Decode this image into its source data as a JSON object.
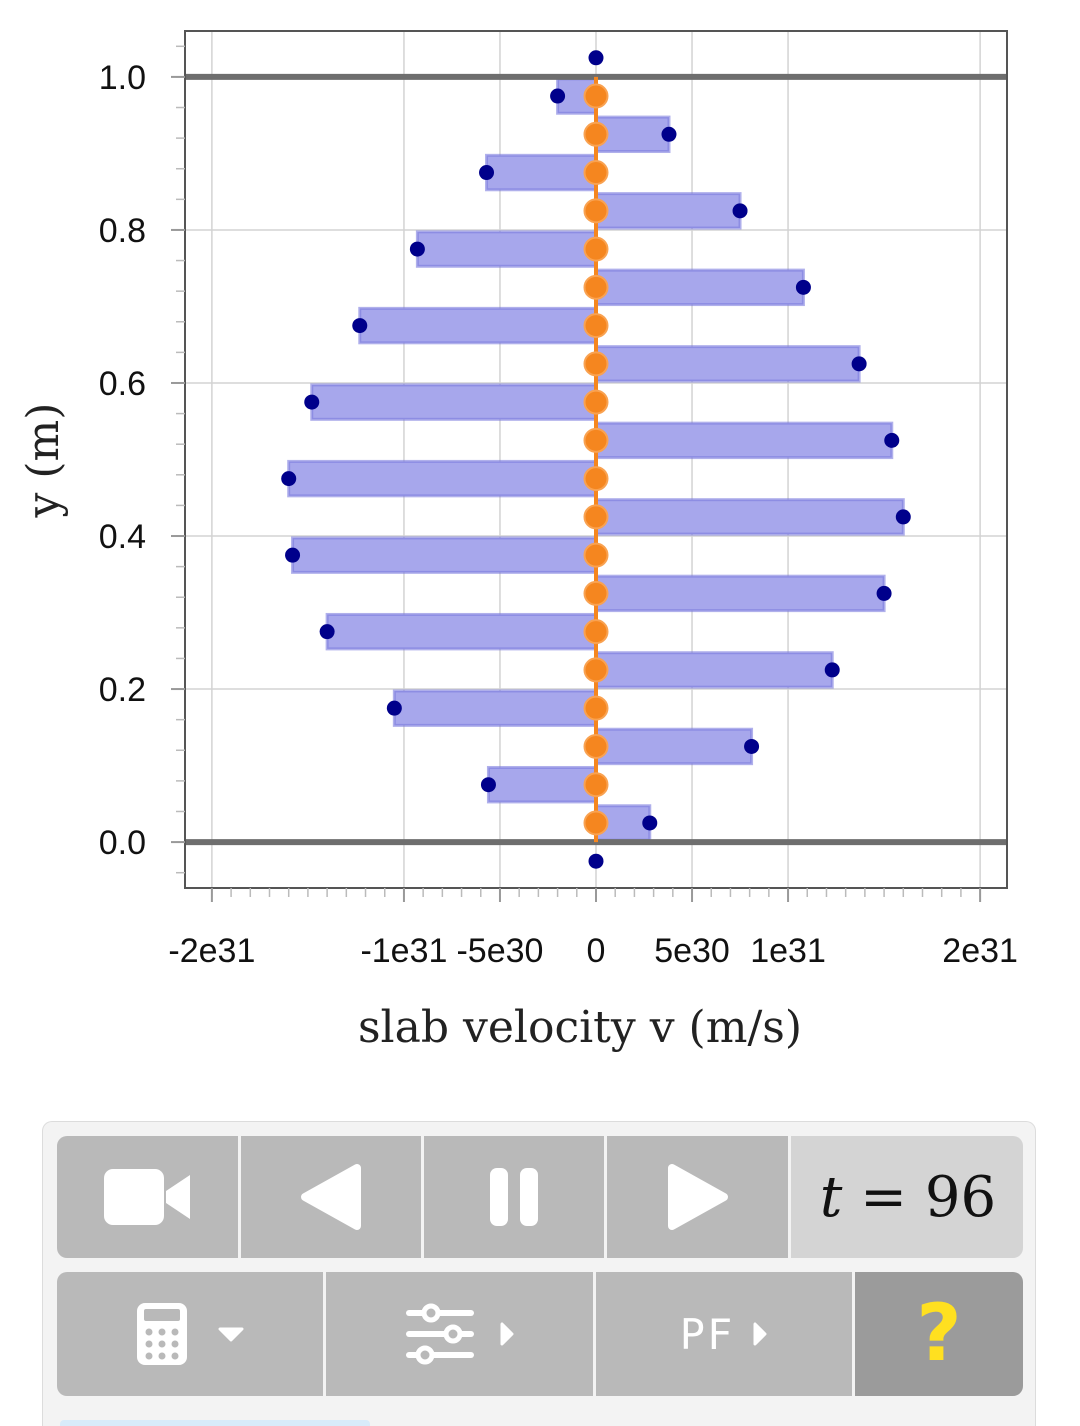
{
  "chart_data": {
    "type": "bar",
    "orientation": "horizontal",
    "xlabel": "slab velocity v (m/s)",
    "ylabel": "y (m)",
    "xlim": [
      -2.14e+31,
      2.14e+31
    ],
    "ylim": [
      -0.06,
      1.06
    ],
    "x_ticks": [
      {
        "value": -2e+31,
        "label": "-2e31"
      },
      {
        "value": -1e+31,
        "label": "-1e31"
      },
      {
        "value": -5e+30,
        "label": "-5e30"
      },
      {
        "value": 0,
        "label": "0"
      },
      {
        "value": 5e+30,
        "label": "5e30"
      },
      {
        "value": 1e+31,
        "label": "1e31"
      },
      {
        "value": 2e+31,
        "label": "2e31"
      }
    ],
    "y_ticks": [
      {
        "value": 0.0,
        "label": "0.0"
      },
      {
        "value": 0.2,
        "label": "0.2"
      },
      {
        "value": 0.4,
        "label": "0.4"
      },
      {
        "value": 0.6,
        "label": "0.6"
      },
      {
        "value": 0.8,
        "label": "0.8"
      },
      {
        "value": 1.0,
        "label": "1.0"
      }
    ],
    "boundaries_y": [
      0.0,
      1.0
    ],
    "bar_height": 0.045,
    "series": [
      {
        "points": [
          {
            "y": 0.025,
            "v": 2.8e+30
          },
          {
            "y": 0.075,
            "v": -5.6e+30
          },
          {
            "y": 0.125,
            "v": 8.1e+30
          },
          {
            "y": 0.175,
            "v": -1.05e+31
          },
          {
            "y": 0.225,
            "v": 1.23e+31
          },
          {
            "y": 0.275,
            "v": -1.4e+31
          },
          {
            "y": 0.325,
            "v": 1.5e+31
          },
          {
            "y": 0.375,
            "v": -1.58e+31
          },
          {
            "y": 0.425,
            "v": 1.6e+31
          },
          {
            "y": 0.475,
            "v": -1.6e+31
          },
          {
            "y": 0.525,
            "v": 1.54e+31
          },
          {
            "y": 0.575,
            "v": -1.48e+31
          },
          {
            "y": 0.625,
            "v": 1.37e+31
          },
          {
            "y": 0.675,
            "v": -1.23e+31
          },
          {
            "y": 0.725,
            "v": 1.08e+31
          },
          {
            "y": 0.775,
            "v": -9.3e+30
          },
          {
            "y": 0.825,
            "v": 7.5e+30
          },
          {
            "y": 0.875,
            "v": -5.7e+30
          },
          {
            "y": 0.925,
            "v": 3.8e+30
          },
          {
            "y": 0.975,
            "v": -2e+30
          }
        ],
        "ghost_points": [
          {
            "y": 1.025,
            "v": 0
          },
          {
            "y": -0.025,
            "v": 0
          }
        ]
      }
    ],
    "colors": {
      "bar_fill": "#a7a7ec",
      "bar_stroke": "#7c7cde",
      "point": "#00008b",
      "equilibrium_marker": "#f5861f",
      "boundary": "#6e6e6e",
      "grid": "#d3d3d3"
    },
    "grid": true
  },
  "controls": {
    "camera_icon": "video-camera-icon",
    "prev_icon": "step-back-icon",
    "pause_icon": "pause-icon",
    "next_icon": "play-icon",
    "time_var": "t",
    "time_eq": " = ",
    "time_value": "96",
    "calculator_icon": "calculator-icon",
    "sliders_icon": "sliders-icon",
    "pf_label": "PF",
    "help_label": "?",
    "colors": {
      "button_bg": "#b9b9b9",
      "time_bg": "#d4d4d4",
      "help_bg": "#9b9b9b",
      "help_fg": "#ffe020",
      "icon_fg": "#ffffff"
    }
  }
}
